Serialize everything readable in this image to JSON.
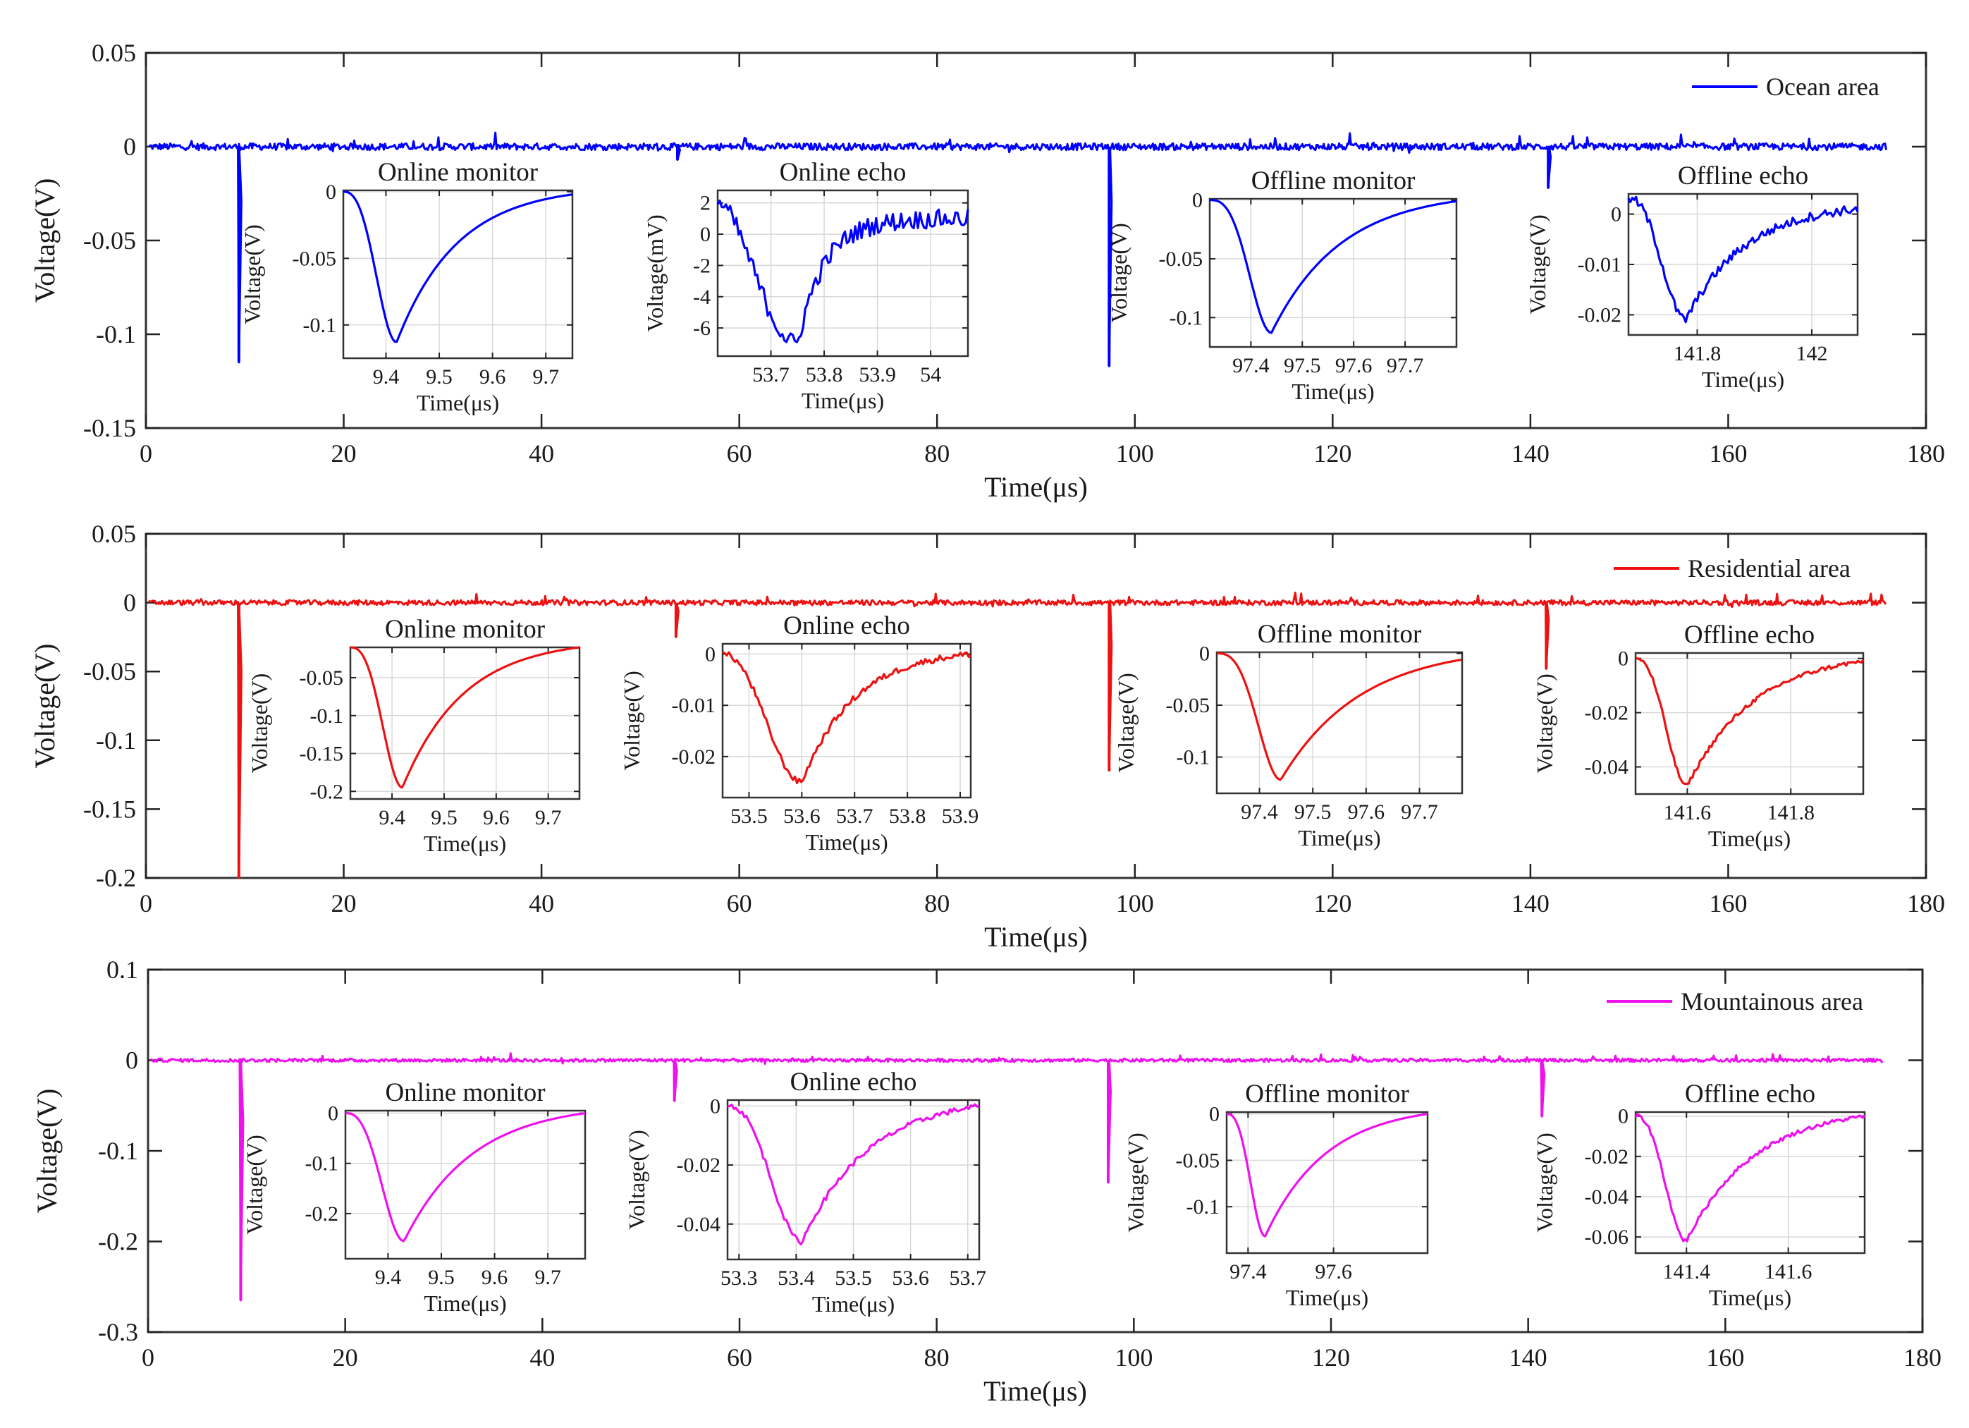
{
  "figure": {
    "panels": [
      {
        "color": "#0000ff",
        "legend": "Ocean area",
        "xlabel": "Time(μs)",
        "ylabel": "Voltage(V)",
        "xlim": [
          0,
          180
        ],
        "ylim": [
          -0.15,
          0.05
        ],
        "xticks": [
          0,
          20,
          40,
          60,
          80,
          100,
          120,
          140,
          160,
          180
        ],
        "xtick_labels": [
          "0",
          "20",
          "40",
          "60",
          "80",
          "100",
          "120",
          "140",
          "160",
          "180"
        ],
        "yticks": [
          0.05,
          0,
          -0.05,
          -0.1,
          -0.15
        ],
        "ytick_labels": [
          "0.05",
          "0",
          "-0.05",
          "-0.1",
          "-0.15"
        ],
        "signal_end": 176,
        "noise": 0.003,
        "pulses": [
          {
            "t": 9.4,
            "v": -0.115
          },
          {
            "t": 53.75,
            "v": -0.007
          },
          {
            "t": 97.4,
            "v": -0.117
          },
          {
            "t": 141.8,
            "v": -0.022
          }
        ],
        "insets": [
          {
            "title": "Online monitor",
            "xlabel": "Time(μs)",
            "ylabel": "Voltage(V)",
            "xlim": [
              9.32,
              9.75
            ],
            "ylim": [
              -0.125,
              0.001
            ],
            "xticks": [
              9.4,
              9.5,
              9.6,
              9.7
            ],
            "xtick_labels": [
              "9.4",
              "9.5",
              "9.6",
              "9.7"
            ],
            "yticks": [
              0,
              -0.05,
              -0.1
            ],
            "ytick_labels": [
              "0",
              "-0.05",
              "-0.1"
            ],
            "curve": {
              "t0": 9.32,
              "tmin": 9.42,
              "vmin": -0.113,
              "tend": 9.75,
              "vend": -0.002,
              "noise": 0,
              "start": 0.0,
              "r1": 1.3,
              "r2": 0.55
            }
          },
          {
            "title": "Online echo",
            "xlabel": "Time(μs)",
            "ylabel": "Voltage(mV)",
            "xlim": [
              53.6,
              54.07
            ],
            "ylim": [
              -7.8,
              2.8
            ],
            "xticks": [
              53.7,
              53.8,
              53.9,
              54.0
            ],
            "xtick_labels": [
              "53.7",
              "53.8",
              "53.9",
              "54"
            ],
            "yticks": [
              2,
              0,
              -2,
              -4,
              -6
            ],
            "ytick_labels": [
              "2",
              "0",
              "-2",
              "-4",
              "-6"
            ],
            "curve": {
              "t0": 53.6,
              "tmin": 53.75,
              "vmin": -7.0,
              "tend": 54.07,
              "vend": 1.0,
              "noise": 0.6,
              "start": 2.0,
              "r1": 0.9,
              "r2": 0.25
            }
          },
          {
            "title": "Offline monitor",
            "xlabel": "Time(μs)",
            "ylabel": "Voltage(V)",
            "xlim": [
              97.32,
              97.8
            ],
            "ylim": [
              -0.125,
              0.001
            ],
            "xticks": [
              97.4,
              97.5,
              97.6,
              97.7
            ],
            "xtick_labels": [
              "97.4",
              "97.5",
              "97.6",
              "97.7"
            ],
            "yticks": [
              0,
              -0.05,
              -0.1
            ],
            "ytick_labels": [
              "0",
              "-0.05",
              "-0.1"
            ],
            "curve": {
              "t0": 97.32,
              "tmin": 97.44,
              "vmin": -0.113,
              "tend": 97.8,
              "vend": -0.001,
              "noise": 0,
              "start": 0.0,
              "r1": 1.4,
              "r2": 0.6
            }
          },
          {
            "title": "Offline echo",
            "xlabel": "Time(μs)",
            "ylabel": "Voltage(V)",
            "xlim": [
              141.68,
              142.08
            ],
            "ylim": [
              -0.024,
              0.004
            ],
            "xticks": [
              141.8,
              142.0
            ],
            "xtick_labels": [
              "141.8",
              "142"
            ],
            "yticks": [
              0,
              -0.01,
              -0.02
            ],
            "ytick_labels": [
              "0",
              "-0.01",
              "-0.02"
            ],
            "curve": {
              "t0": 141.68,
              "tmin": 141.78,
              "vmin": -0.021,
              "tend": 142.08,
              "vend": 0.001,
              "noise": 0.0009,
              "start": 0.003,
              "r1": 1.2,
              "r2": 0.55
            }
          }
        ]
      },
      {
        "color": "#ee1111",
        "legend": "Residential area",
        "xlabel": "Time(μs)",
        "ylabel": "Voltage(V)",
        "xlim": [
          0,
          180
        ],
        "ylim": [
          -0.2,
          0.05
        ],
        "xticks": [
          0,
          20,
          40,
          60,
          80,
          100,
          120,
          140,
          160,
          180
        ],
        "xtick_labels": [
          "0",
          "20",
          "40",
          "60",
          "80",
          "100",
          "120",
          "140",
          "160",
          "180"
        ],
        "yticks": [
          0.05,
          0,
          -0.05,
          -0.1,
          -0.15,
          -0.2
        ],
        "ytick_labels": [
          "0.05",
          "0",
          "-0.05",
          "-0.1",
          "-0.15",
          "-0.2"
        ],
        "signal_end": 176,
        "noise": 0.003,
        "pulses": [
          {
            "t": 9.4,
            "v": -0.2
          },
          {
            "t": 53.6,
            "v": -0.025
          },
          {
            "t": 97.4,
            "v": -0.122
          },
          {
            "t": 141.6,
            "v": -0.048
          }
        ],
        "insets": [
          {
            "title": "Online monitor",
            "xlabel": "Time(μs)",
            "ylabel": "Voltage(V)",
            "xlim": [
              9.32,
              9.76
            ],
            "ylim": [
              -0.21,
              -0.01
            ],
            "xticks": [
              9.4,
              9.5,
              9.6,
              9.7
            ],
            "xtick_labels": [
              "9.4",
              "9.5",
              "9.6",
              "9.7"
            ],
            "yticks": [
              -0.05,
              -0.1,
              -0.15,
              -0.2
            ],
            "ytick_labels": [
              "-0.05",
              "-0.1",
              "-0.15",
              "-0.2"
            ],
            "curve": {
              "t0": 9.32,
              "tmin": 9.42,
              "vmin": -0.195,
              "tend": 9.76,
              "vend": -0.01,
              "noise": 0,
              "start": -0.01,
              "r1": 1.3,
              "r2": 0.55
            }
          },
          {
            "title": "Online echo",
            "xlabel": "Time(μs)",
            "ylabel": "Voltage(V)",
            "xlim": [
              53.45,
              53.92
            ],
            "ylim": [
              -0.028,
              0.002
            ],
            "xticks": [
              53.5,
              53.6,
              53.7,
              53.8,
              53.9
            ],
            "xtick_labels": [
              "53.5",
              "53.6",
              "53.7",
              "53.8",
              "53.9"
            ],
            "yticks": [
              0,
              -0.01,
              -0.02
            ],
            "ytick_labels": [
              "0",
              "-0.01",
              "-0.02"
            ],
            "curve": {
              "t0": 53.45,
              "tmin": 53.6,
              "vmin": -0.025,
              "tend": 53.92,
              "vend": 0.0,
              "noise": 0.0006,
              "start": 0.0,
              "r1": 1.1,
              "r2": 0.5
            }
          },
          {
            "title": "Offline monitor",
            "xlabel": "Time(μs)",
            "ylabel": "Voltage(V)",
            "xlim": [
              97.32,
              97.78
            ],
            "ylim": [
              -0.135,
              0.001
            ],
            "xticks": [
              97.4,
              97.5,
              97.6,
              97.7
            ],
            "xtick_labels": [
              "97.4",
              "97.5",
              "97.6",
              "97.7"
            ],
            "yticks": [
              0,
              -0.05,
              -0.1
            ],
            "ytick_labels": [
              "0",
              "-0.05",
              "-0.1"
            ],
            "curve": {
              "t0": 97.32,
              "tmin": 97.44,
              "vmin": -0.122,
              "tend": 97.78,
              "vend": -0.006,
              "noise": 0,
              "start": 0.0,
              "r1": 1.4,
              "r2": 0.7
            }
          },
          {
            "title": "Offline echo",
            "xlabel": "Time(μs)",
            "ylabel": "Voltage(V)",
            "xlim": [
              141.5,
              141.94
            ],
            "ylim": [
              -0.05,
              0.002
            ],
            "xticks": [
              141.6,
              141.8
            ],
            "xtick_labels": [
              "141.6",
              "141.8"
            ],
            "yticks": [
              0,
              -0.02,
              -0.04
            ],
            "ytick_labels": [
              "0",
              "-0.02",
              "-0.04"
            ],
            "curve": {
              "t0": 141.5,
              "tmin": 141.6,
              "vmin": -0.047,
              "tend": 141.94,
              "vend": -0.001,
              "noise": 0.0008,
              "start": 0.0,
              "r1": 1.2,
              "r2": 0.6
            }
          }
        ]
      },
      {
        "color": "#ee11ee",
        "legend": "Mountainous area",
        "xlabel": "Time(μs)",
        "ylabel": "Voltage(V)",
        "xlim": [
          0,
          180
        ],
        "ylim": [
          -0.3,
          0.1
        ],
        "xticks": [
          0,
          20,
          40,
          60,
          80,
          100,
          120,
          140,
          160,
          180
        ],
        "xtick_labels": [
          "0",
          "20",
          "40",
          "60",
          "80",
          "100",
          "120",
          "140",
          "160",
          "180"
        ],
        "yticks": [
          0.1,
          0,
          -0.1,
          -0.2,
          -0.3
        ],
        "ytick_labels": [
          "0.1",
          "0",
          "-0.1",
          "-0.2",
          "-0.3"
        ],
        "signal_end": 176,
        "noise": 0.003,
        "pulses": [
          {
            "t": 9.4,
            "v": -0.265
          },
          {
            "t": 53.4,
            "v": -0.045
          },
          {
            "t": 97.4,
            "v": -0.135
          },
          {
            "t": 141.4,
            "v": -0.062
          }
        ],
        "insets": [
          {
            "title": "Online monitor",
            "xlabel": "Time(μs)",
            "ylabel": "Voltage(V)",
            "xlim": [
              9.32,
              9.77
            ],
            "ylim": [
              -0.29,
              0.005
            ],
            "xticks": [
              9.4,
              9.5,
              9.6,
              9.7
            ],
            "xtick_labels": [
              "9.4",
              "9.5",
              "9.6",
              "9.7"
            ],
            "yticks": [
              0,
              -0.1,
              -0.2
            ],
            "ytick_labels": [
              "0",
              "-0.1",
              "-0.2"
            ],
            "curve": {
              "t0": 9.32,
              "tmin": 9.43,
              "vmin": -0.255,
              "tend": 9.77,
              "vend": 0.0,
              "noise": 0,
              "start": 0.0,
              "r1": 1.3,
              "r2": 0.6
            }
          },
          {
            "title": "Online echo",
            "xlabel": "Time(μs)",
            "ylabel": "Voltage(V)",
            "xlim": [
              53.28,
              53.72
            ],
            "ylim": [
              -0.052,
              0.002
            ],
            "xticks": [
              53.3,
              53.4,
              53.5,
              53.6,
              53.7
            ],
            "xtick_labels": [
              "53.3",
              "53.4",
              "53.5",
              "53.6",
              "53.7"
            ],
            "yticks": [
              0,
              -0.02,
              -0.04
            ],
            "ytick_labels": [
              "0",
              "-0.02",
              "-0.04"
            ],
            "curve": {
              "t0": 53.28,
              "tmin": 53.41,
              "vmin": -0.046,
              "tend": 53.72,
              "vend": 0.0,
              "noise": 0.0009,
              "start": 0.0,
              "r1": 1.2,
              "r2": 0.6
            }
          },
          {
            "title": "Offline monitor",
            "xlabel": "Time(μs)",
            "ylabel": "Voltage(V)",
            "xlim": [
              97.35,
              97.82
            ],
            "ylim": [
              -0.15,
              0.002
            ],
            "xticks": [
              97.4,
              97.6
            ],
            "xtick_labels": [
              "97.4",
              "97.6"
            ],
            "yticks": [
              0,
              -0.05,
              -0.1
            ],
            "ytick_labels": [
              "0",
              "-0.05",
              "-0.1"
            ],
            "curve": {
              "t0": 97.35,
              "tmin": 97.44,
              "vmin": -0.132,
              "tend": 97.82,
              "vend": 0.0,
              "noise": 0,
              "start": 0.0,
              "r1": 1.3,
              "r2": 0.6
            }
          },
          {
            "title": "Offline echo",
            "xlabel": "Time(μs)",
            "ylabel": "Voltage(V)",
            "xlim": [
              141.3,
              141.75
            ],
            "ylim": [
              -0.068,
              0.002
            ],
            "xticks": [
              141.4,
              141.6
            ],
            "xtick_labels": [
              "141.4",
              "141.6"
            ],
            "yticks": [
              0,
              -0.02,
              -0.04,
              -0.06
            ],
            "ytick_labels": [
              "0",
              "-0.02",
              "-0.04",
              "-0.06"
            ],
            "curve": {
              "t0": 141.3,
              "tmin": 141.4,
              "vmin": -0.062,
              "tend": 141.75,
              "vend": 0.0,
              "noise": 0.001,
              "start": 0.0,
              "r1": 1.2,
              "r2": 0.6
            }
          }
        ]
      }
    ]
  },
  "chart_data": [
    {
      "type": "line",
      "title": "",
      "legend": [
        "Ocean area"
      ],
      "xlabel": "Time(μs)",
      "ylabel": "Voltage(V)",
      "xlim": [
        0,
        180
      ],
      "ylim": [
        -0.15,
        0.05
      ],
      "series": [
        {
          "name": "Ocean area",
          "pulse_times_us": [
            9.4,
            53.75,
            97.4,
            141.8
          ],
          "pulse_minima_V": [
            -0.115,
            -0.007,
            -0.117,
            -0.022
          ]
        }
      ],
      "insets": [
        "Online monitor",
        "Online echo",
        "Offline monitor",
        "Offline echo"
      ]
    },
    {
      "type": "line",
      "title": "",
      "legend": [
        "Residential area"
      ],
      "xlabel": "Time(μs)",
      "ylabel": "Voltage(V)",
      "xlim": [
        0,
        180
      ],
      "ylim": [
        -0.2,
        0.05
      ],
      "series": [
        {
          "name": "Residential area",
          "pulse_times_us": [
            9.4,
            53.6,
            97.4,
            141.6
          ],
          "pulse_minima_V": [
            -0.2,
            -0.025,
            -0.122,
            -0.048
          ]
        }
      ],
      "insets": [
        "Online monitor",
        "Online echo",
        "Offline monitor",
        "Offline echo"
      ]
    },
    {
      "type": "line",
      "title": "",
      "legend": [
        "Mountainous area"
      ],
      "xlabel": "Time(μs)",
      "ylabel": "Voltage(V)",
      "xlim": [
        0,
        180
      ],
      "ylim": [
        -0.3,
        0.1
      ],
      "series": [
        {
          "name": "Mountainous area",
          "pulse_times_us": [
            9.4,
            53.4,
            97.4,
            141.4
          ],
          "pulse_minima_V": [
            -0.265,
            -0.045,
            -0.135,
            -0.062
          ]
        }
      ],
      "insets": [
        "Online monitor",
        "Online echo",
        "Offline monitor",
        "Offline echo"
      ]
    }
  ]
}
